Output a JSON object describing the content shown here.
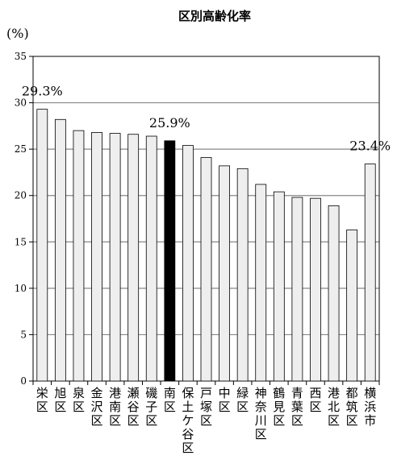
{
  "chart_data": {
    "type": "bar",
    "title": "区別高齢化率",
    "unit_label": "(%)",
    "ylim": [
      0,
      35
    ],
    "yticks": [
      0,
      5,
      10,
      15,
      20,
      25,
      30,
      35
    ],
    "grid": true,
    "categories": [
      "栄区",
      "旭区",
      "泉区",
      "金沢区",
      "港南区",
      "瀬谷区",
      "磯子区",
      "南区",
      "保土ケ谷区",
      "戸塚区",
      "中区",
      "緑区",
      "神奈川区",
      "鶴見区",
      "青葉区",
      "西区",
      "港北区",
      "都筑区",
      "横浜市"
    ],
    "values": [
      29.3,
      28.2,
      27.0,
      26.8,
      26.7,
      26.6,
      26.4,
      25.9,
      25.4,
      24.1,
      23.2,
      22.9,
      21.2,
      20.4,
      19.8,
      19.7,
      18.9,
      16.3,
      23.4
    ],
    "highlight": "南区",
    "data_labels": [
      {
        "category": "栄区",
        "text": "29.3%"
      },
      {
        "category": "南区",
        "text": "25.9%"
      },
      {
        "category": "横浜市",
        "text": "23.4%"
      }
    ],
    "colors": {
      "bar": "#eeeeee",
      "highlight": "#000000",
      "outline": "#000000",
      "grid": "#888888"
    }
  }
}
